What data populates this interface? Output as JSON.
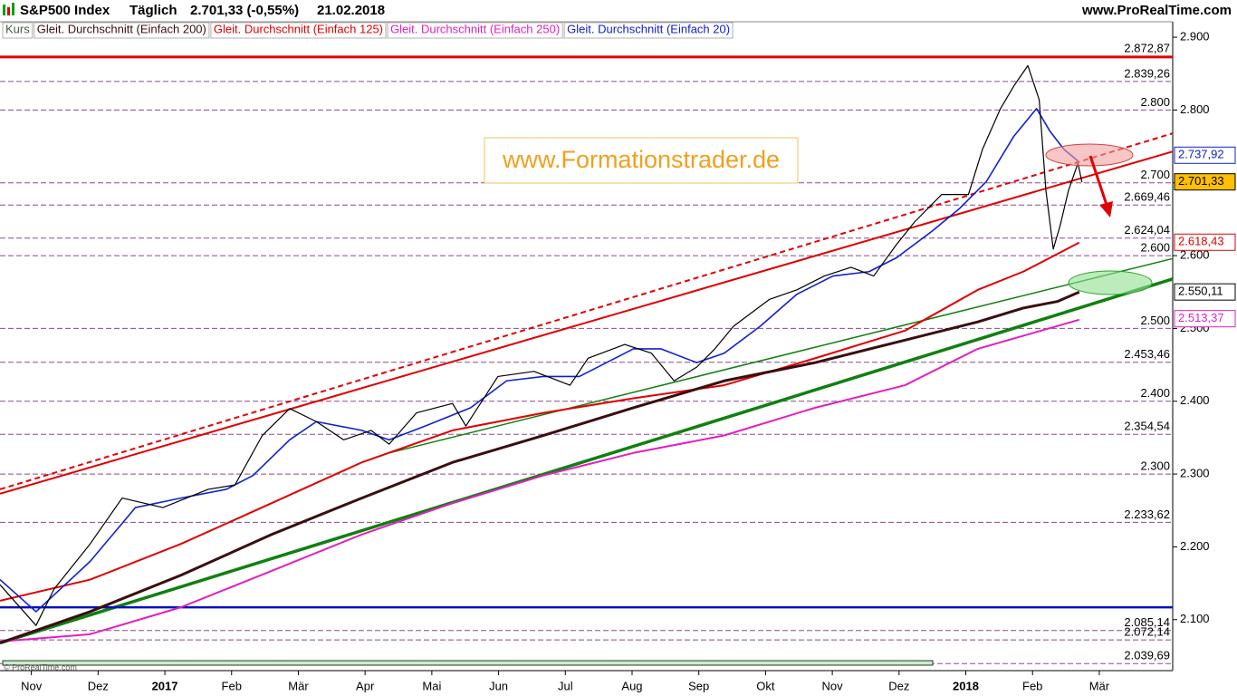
{
  "chart_data": {
    "type": "line",
    "title": "S&P500 Index",
    "period": "Täglich",
    "quote": "2.701,33 (-0,55%)",
    "date": "21.02.2018",
    "source": "www.ProRealTime.com",
    "copyright": "© ProRealTime.com",
    "watermark": "www.Formationstrader.de",
    "xlim": [
      -0.47,
      17.1
    ],
    "ylim": [
      2030,
      2920
    ],
    "xticks": [
      {
        "value": 0,
        "label": "Nov"
      },
      {
        "value": 1,
        "label": "Dez"
      },
      {
        "value": 2,
        "label": "2017"
      },
      {
        "value": 3,
        "label": "Feb"
      },
      {
        "value": 4,
        "label": "Mär"
      },
      {
        "value": 5,
        "label": "Apr"
      },
      {
        "value": 6,
        "label": "Mai"
      },
      {
        "value": 7,
        "label": "Jun"
      },
      {
        "value": 8,
        "label": "Jul"
      },
      {
        "value": 9,
        "label": "Aug"
      },
      {
        "value": 10,
        "label": "Sep"
      },
      {
        "value": 11,
        "label": "Okt"
      },
      {
        "value": 12,
        "label": "Nov"
      },
      {
        "value": 13,
        "label": "Dez"
      },
      {
        "value": 14,
        "label": "2018"
      },
      {
        "value": 15,
        "label": "Feb"
      },
      {
        "value": 16,
        "label": "Mär"
      }
    ],
    "yticks": [
      {
        "value": 2900,
        "label": "2.900"
      },
      {
        "value": 2800,
        "label": "2.800"
      },
      {
        "value": 2700,
        "label": "2.700"
      },
      {
        "value": 2600,
        "label": "2.600"
      },
      {
        "value": 2500,
        "label": "2.500"
      },
      {
        "value": 2400,
        "label": "2.400"
      },
      {
        "value": 2300,
        "label": "2.300"
      },
      {
        "value": 2200,
        "label": "2.200"
      },
      {
        "value": 2100,
        "label": "2.100"
      }
    ],
    "resistance_level": {
      "value": 2872.87,
      "label": "2.872,87",
      "color": "#e00000"
    },
    "level_color": "#8b4a8b",
    "levels": [
      {
        "value": 2839.26,
        "label": "2.839,26"
      },
      {
        "value": 2800,
        "label": "2.800"
      },
      {
        "value": 2700,
        "label": "2.700"
      },
      {
        "value": 2669.46,
        "label": "2.669,46"
      },
      {
        "value": 2624.04,
        "label": "2.624,04"
      },
      {
        "value": 2600,
        "label": "2.600"
      },
      {
        "value": 2500,
        "label": "2.500"
      },
      {
        "value": 2453.46,
        "label": "2.453,46"
      },
      {
        "value": 2400,
        "label": "2.400"
      },
      {
        "value": 2354.54,
        "label": "2.354,54"
      },
      {
        "value": 2300,
        "label": "2.300"
      },
      {
        "value": 2233.62,
        "label": "2.233,62"
      },
      {
        "value": 2085.14,
        "label": "2.085,14"
      },
      {
        "value": 2072.14,
        "label": "2.072,14"
      },
      {
        "value": 2039.69,
        "label": "2.039,69"
      }
    ],
    "series": [
      {
        "name": "Kurs",
        "color": "#000000",
        "legend_color": "#406040",
        "width": 1.2,
        "x": [
          -0.47,
          0.07,
          0.34,
          0.88,
          1.36,
          1.97,
          2.65,
          3.05,
          3.46,
          3.87,
          4.27,
          4.68,
          5.09,
          5.36,
          5.77,
          6.31,
          6.51,
          6.99,
          7.53,
          8.07,
          8.34,
          8.89,
          9.29,
          9.63,
          9.97,
          10.24,
          10.52,
          11.06,
          11.47,
          11.88,
          12.28,
          12.62,
          12.96,
          13.23,
          13.64,
          14.04,
          14.25,
          14.52,
          14.72,
          14.93,
          15.1,
          15.2,
          15.31,
          15.41,
          15.54,
          15.68,
          15.74
        ],
        "values": [
          2148,
          2092,
          2142,
          2204,
          2267,
          2254,
          2279,
          2285,
          2353,
          2390,
          2372,
          2347,
          2360,
          2341,
          2384,
          2397,
          2366,
          2434,
          2441,
          2422,
          2459,
          2478,
          2466,
          2428,
          2447,
          2472,
          2503,
          2540,
          2553,
          2572,
          2584,
          2572,
          2615,
          2646,
          2684,
          2684,
          2746,
          2802,
          2833,
          2861,
          2814,
          2690,
          2609,
          2640,
          2690,
          2727,
          2701
        ]
      },
      {
        "name": "Gleit. Durchschnitt (Einfach 200)",
        "color": "#3a0e0e",
        "legend_color": "#3a0e0e",
        "width": 3,
        "x": [
          -0.47,
          0.88,
          2.24,
          3.6,
          4.95,
          6.31,
          7.67,
          9.02,
          10.38,
          11.74,
          13.09,
          14.18,
          14.86,
          15.37,
          15.7
        ],
        "values": [
          2068,
          2111,
          2161,
          2217,
          2267,
          2316,
          2353,
          2391,
          2428,
          2453,
          2484,
          2509,
          2528,
          2537,
          2550
        ]
      },
      {
        "name": "Gleit. Durchschnitt (Einfach 125)",
        "color": "#e00000",
        "legend_color": "#e00000",
        "width": 2,
        "x": [
          -0.47,
          0.88,
          2.24,
          3.6,
          4.95,
          6.31,
          7.67,
          9.02,
          10.38,
          11.74,
          13.09,
          14.18,
          14.86,
          15.26,
          15.7
        ],
        "values": [
          2126,
          2155,
          2204,
          2260,
          2316,
          2360,
          2384,
          2404,
          2422,
          2459,
          2497,
          2553,
          2578,
          2597,
          2618
        ]
      },
      {
        "name": "Gleit. Durchschnitt (Einfach 250)",
        "color": "#e020c0",
        "legend_color": "#e020c0",
        "width": 2,
        "x": [
          -0.47,
          0.88,
          2.24,
          3.6,
          4.95,
          6.31,
          7.67,
          9.02,
          10.38,
          11.74,
          13.09,
          14.18,
          15.13,
          15.7
        ],
        "values": [
          2070,
          2080,
          2117,
          2167,
          2217,
          2260,
          2298,
          2329,
          2353,
          2391,
          2422,
          2472,
          2497,
          2512
        ]
      },
      {
        "name": "Gleit. Durchschnitt (Einfach 20)",
        "color": "#1020d0",
        "legend_color": "#1020d0",
        "width": 1.6,
        "x": [
          -0.47,
          0.07,
          0.88,
          1.56,
          2.24,
          2.92,
          3.32,
          3.87,
          4.27,
          4.95,
          5.36,
          5.9,
          6.58,
          7.12,
          7.67,
          8.21,
          9.02,
          9.43,
          9.97,
          10.38,
          10.92,
          11.47,
          12.01,
          12.55,
          12.96,
          13.5,
          13.91,
          14.31,
          14.72,
          15.06,
          15.26,
          15.47,
          15.68
        ],
        "values": [
          2155,
          2111,
          2180,
          2254,
          2267,
          2279,
          2298,
          2347,
          2372,
          2360,
          2347,
          2366,
          2391,
          2428,
          2434,
          2434,
          2472,
          2472,
          2453,
          2466,
          2503,
          2547,
          2572,
          2578,
          2597,
          2634,
          2665,
          2702,
          2764,
          2802,
          2771,
          2746,
          2730
        ]
      }
    ],
    "lines": [
      {
        "color": "#e00000",
        "width": 2,
        "dashed": false,
        "x": [
          -0.47,
          17.1
        ],
        "values": [
          2273,
          2743
        ]
      },
      {
        "color": "#e00000",
        "width": 2,
        "dashed": true,
        "x": [
          -0.47,
          17.1
        ],
        "values": [
          2279,
          2768
        ]
      },
      {
        "color": "#108010",
        "width": 1.5,
        "dashed": false,
        "x": [
          5.36,
          17.1
        ],
        "values": [
          2329,
          2596
        ]
      },
      {
        "color": "#108010",
        "width": 3.5,
        "dashed": false,
        "x": [
          -0.47,
          17.1
        ],
        "values": [
          2068,
          2568
        ]
      },
      {
        "color": "#0010c0",
        "width": 2.5,
        "dashed": false,
        "x": [
          -0.47,
          17.1
        ],
        "values": [
          2117,
          2117
        ]
      }
    ],
    "value_boxes": [
      {
        "value": 2737.92,
        "label": "2.737,92",
        "color": "#1020d0",
        "fill": "#ffffff"
      },
      {
        "value": 2701.33,
        "label": "2.701,33",
        "color": "#000000",
        "fill": "#ffc000"
      },
      {
        "value": 2618.43,
        "label": "2.618,43",
        "color": "#e00000",
        "fill": "#ffffff"
      },
      {
        "value": 2550.11,
        "label": "2.550,11",
        "color": "#000000",
        "fill": "#ffffff"
      },
      {
        "value": 2513.37,
        "label": "2.513,37",
        "color": "#e020c0",
        "fill": "#ffffff"
      }
    ]
  }
}
